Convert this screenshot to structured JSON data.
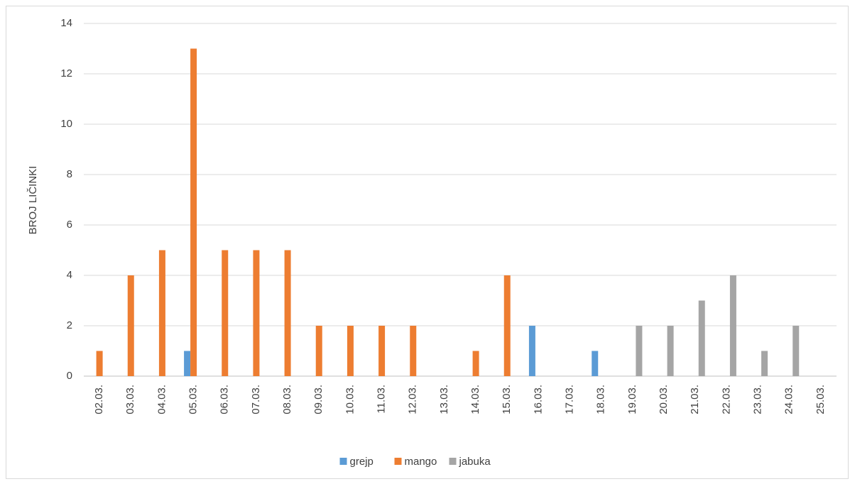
{
  "chart_data": {
    "type": "bar",
    "y_label": "BROJ LIČINKI",
    "categories": [
      "02.03.",
      "03.03.",
      "04.03.",
      "05.03.",
      "06.03.",
      "07.03.",
      "08.03.",
      "09.03.",
      "10.03.",
      "11.03.",
      "12.03.",
      "13.03.",
      "14.03.",
      "15.03.",
      "16.03.",
      "17.03.",
      "18.03.",
      "19.03.",
      "20.03.",
      "21.03.",
      "22.03.",
      "23.03.",
      "24.03.",
      "25.03."
    ],
    "series": [
      {
        "name": "grejp",
        "color": "#5b9bd5",
        "values": [
          0,
          0,
          0,
          1,
          0,
          0,
          0,
          0,
          0,
          0,
          0,
          0,
          0,
          0,
          2,
          0,
          1,
          0,
          0,
          0,
          0,
          0,
          0,
          0
        ]
      },
      {
        "name": "mango",
        "color": "#ed7d31",
        "values": [
          1,
          4,
          5,
          13,
          5,
          5,
          5,
          2,
          2,
          2,
          2,
          0,
          1,
          4,
          0,
          0,
          0,
          0,
          0,
          0,
          0,
          0,
          0,
          0
        ]
      },
      {
        "name": "jabuka",
        "color": "#a5a5a5",
        "values": [
          0,
          0,
          0,
          0,
          0,
          0,
          0,
          0,
          0,
          0,
          0,
          0,
          0,
          0,
          0,
          0,
          0,
          2,
          2,
          3,
          4,
          1,
          2,
          0
        ]
      }
    ],
    "ylim": [
      0,
      14
    ],
    "yticks": [
      0,
      2,
      4,
      6,
      8,
      10,
      12,
      14
    ],
    "grid": true,
    "legend": "bottom"
  }
}
